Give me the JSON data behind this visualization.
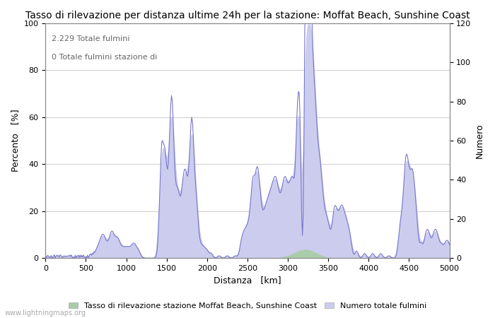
{
  "title": "Tasso di rilevazione per distanza ultime 24h per la stazione: Moffat Beach, Sunshine Coast",
  "xlabel": "Distanza   [km]",
  "ylabel_left": "Percento   [%]",
  "ylabel_right": "Numero",
  "annotation_line1": "2.229 Totale fulmini",
  "annotation_line2": "0 Totale fulmini stazione di",
  "legend_green": "Tasso di rilevazione stazione Moffat Beach, Sunshine Coast",
  "legend_blue": "Numero totale fulmini",
  "watermark": "www.lightningmaps.org",
  "xlim": [
    0,
    5000
  ],
  "ylim_left": [
    0,
    100
  ],
  "ylim_right": [
    0,
    120
  ],
  "yticks_left": [
    0,
    20,
    40,
    60,
    80,
    100
  ],
  "yticks_right": [
    0,
    20,
    40,
    60,
    80,
    100,
    120
  ],
  "xticks": [
    0,
    500,
    1000,
    1500,
    2000,
    2500,
    3000,
    3500,
    4000,
    4500,
    5000
  ],
  "color_line": "#7777cc",
  "color_fill_blue": "#ccccee",
  "color_fill_green": "#aaccaa",
  "background_color": "#ffffff",
  "grid_color": "#cccccc",
  "title_fontsize": 10,
  "label_fontsize": 9,
  "tick_fontsize": 8,
  "annotation_fontsize": 8
}
